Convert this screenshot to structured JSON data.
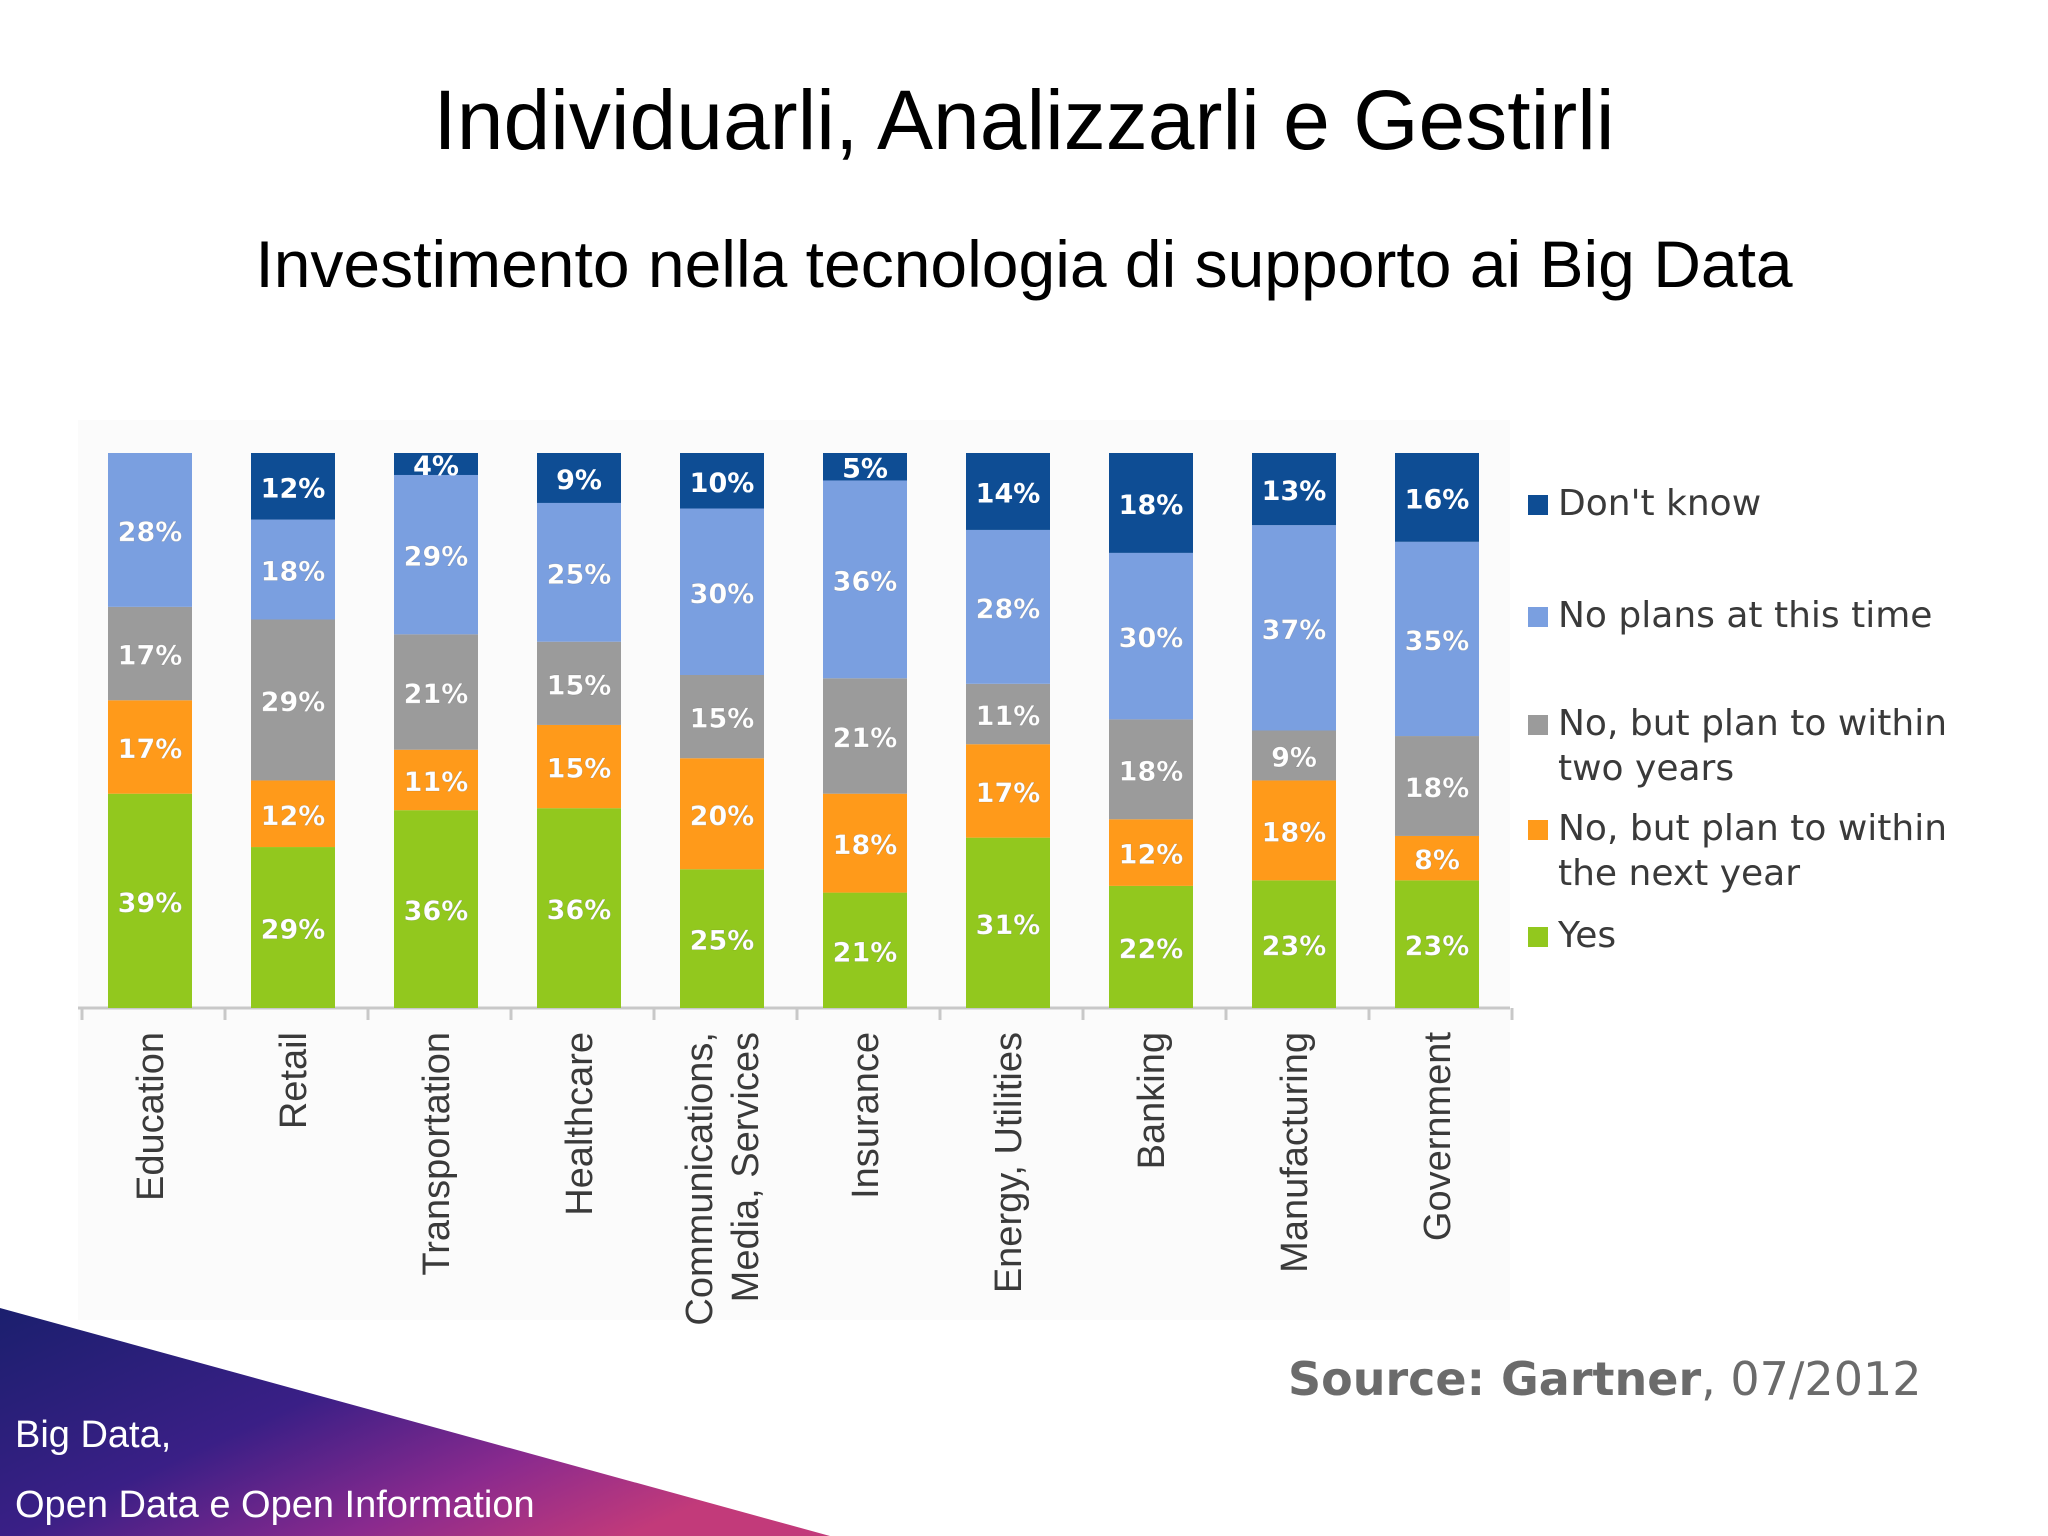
{
  "slide": {
    "title": "Individuarli, Analizzarli e Gestirli",
    "subtitle": "Investimento nella tecnologia di supporto ai Big Data"
  },
  "chart_data": {
    "type": "bar",
    "stacked": true,
    "categories": [
      "Education",
      "Retail",
      "Transportation",
      "Healthcare",
      "Communications, Media, Services",
      "Insurance",
      "Energy, Utilities",
      "Banking",
      "Manufacturing",
      "Government"
    ],
    "series": [
      {
        "name": "Yes",
        "color": "#92c81e",
        "values": [
          39,
          29,
          36,
          36,
          25,
          21,
          31,
          22,
          23,
          23
        ]
      },
      {
        "name": "No, but plan to within the next year",
        "color": "#ff9a1a",
        "values": [
          17,
          12,
          11,
          15,
          20,
          18,
          17,
          12,
          18,
          8
        ]
      },
      {
        "name": "No, but plan to within two years",
        "color": "#9b9b9b",
        "values": [
          17,
          29,
          21,
          15,
          15,
          21,
          11,
          18,
          9,
          18
        ]
      },
      {
        "name": "No plans at this time",
        "color": "#7a9fe0",
        "values": [
          28,
          18,
          29,
          25,
          30,
          36,
          28,
          30,
          37,
          35
        ]
      },
      {
        "name": "Don't know",
        "color": "#0e4d94",
        "values": [
          0,
          12,
          4,
          9,
          10,
          5,
          14,
          18,
          13,
          16
        ]
      }
    ],
    "legend_order": [
      "Don't know",
      "No plans at this time",
      "No, but plan to within two years",
      "No, but plan to within the next year",
      "Yes"
    ],
    "value_suffix": "%",
    "legend_position": "right",
    "grid": false,
    "source_label": "Source: Gartner",
    "source_date": ", 07/2012"
  },
  "footer": {
    "line1": "Big Data,",
    "line2": "Open Data  e Open Information"
  }
}
